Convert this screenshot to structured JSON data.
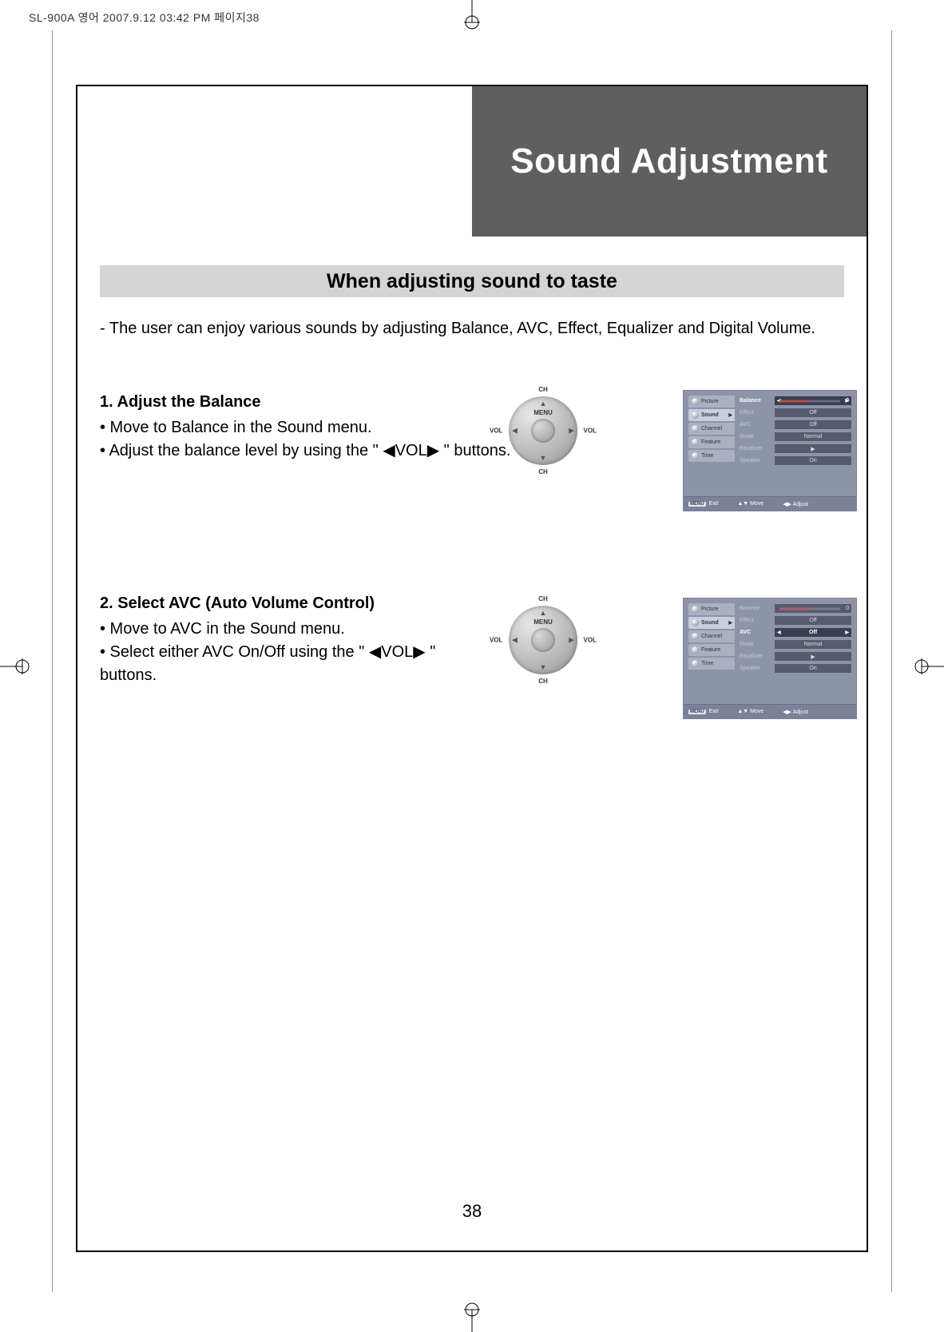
{
  "print_header": "SL-900A 영어  2007.9.12 03:42 PM 페이지38",
  "chapter_title": "Sound Adjustment",
  "section_title": "When adjusting sound to taste",
  "intro": "- The user can enjoy various sounds by adjusting Balance, AVC, Effect, Equalizer and Digital Volume.",
  "steps": [
    {
      "title": "1. Adjust the Balance",
      "lines": [
        "• Move to Balance in the Sound menu.",
        "• Adjust the balance level by using the \" ◀VOL▶ \" buttons."
      ]
    },
    {
      "title": "2. Select AVC (Auto Volume Control)",
      "lines": [
        "• Move to AVC in the Sound menu.",
        "• Select either AVC On/Off using the \" ◀VOL▶ \"",
        "   buttons."
      ]
    }
  ],
  "dpad": {
    "menu": "MENU",
    "ch": "CH",
    "vol_l": "VOL",
    "vol_r": "VOL"
  },
  "osd": {
    "tabs": [
      "Picture",
      "Sound",
      "Channel",
      "Feature",
      "Time"
    ],
    "active_tab": "Sound",
    "rows_variant1_selected": "Balance",
    "rows_variant2_selected": "AVC",
    "rows": [
      {
        "label": "Balance",
        "value": "0",
        "slider": true
      },
      {
        "label": "Effect",
        "value": "Off"
      },
      {
        "label": "AVC",
        "value": "Off"
      },
      {
        "label": "Mode",
        "value": "Normal"
      },
      {
        "label": "Equalizer",
        "value": "▶"
      },
      {
        "label": "Speaker",
        "value": "On"
      }
    ],
    "footer": {
      "exit_key": "MENU",
      "exit": "Exit",
      "move": "Move",
      "adjust": "Adjust"
    }
  },
  "page_number": "38",
  "colors": {
    "chapter_bar": "#5f5f5f",
    "section_bar": "#d4d4d4",
    "osd_bg": "#8e94a8",
    "osd_dark": "#3a3e52"
  }
}
